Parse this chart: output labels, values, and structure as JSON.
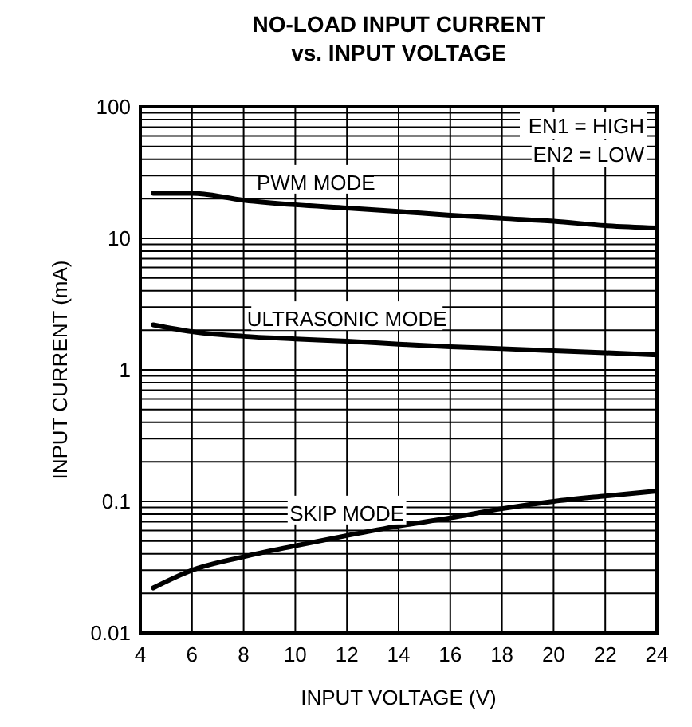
{
  "chart_data": {
    "type": "line",
    "title": "NO-LOAD INPUT CURRENT\nvs. INPUT VOLTAGE",
    "xlabel": "INPUT VOLTAGE (V)",
    "ylabel": "INPUT CURRENT (mA)",
    "log": "y",
    "grid": true,
    "x": [
      4.5,
      6,
      8,
      10,
      12,
      14,
      16,
      18,
      20,
      22,
      24
    ],
    "series": [
      {
        "name": "PWM MODE",
        "color": "#000000",
        "values": [
          22,
          22,
          19.5,
          18,
          17,
          16,
          15,
          14.2,
          13.5,
          12.5,
          12
        ]
      },
      {
        "name": "ULTRASONIC MODE",
        "color": "#000000",
        "values": [
          2.2,
          1.95,
          1.8,
          1.72,
          1.65,
          1.57,
          1.5,
          1.45,
          1.4,
          1.35,
          1.3
        ]
      },
      {
        "name": "SKIP MODE",
        "color": "#000000",
        "values": [
          0.022,
          0.03,
          0.038,
          0.046,
          0.055,
          0.065,
          0.075,
          0.088,
          0.1,
          0.11,
          0.12
        ]
      }
    ],
    "xlim": [
      4,
      24
    ],
    "xticks": [
      4,
      6,
      8,
      10,
      12,
      14,
      16,
      18,
      20,
      22,
      24
    ],
    "ylim": [
      0.01,
      100
    ],
    "yticks": [
      0.01,
      0.1,
      1,
      10,
      100
    ],
    "annotations": [
      "EN1 = HIGH",
      "EN2 = LOW"
    ]
  }
}
